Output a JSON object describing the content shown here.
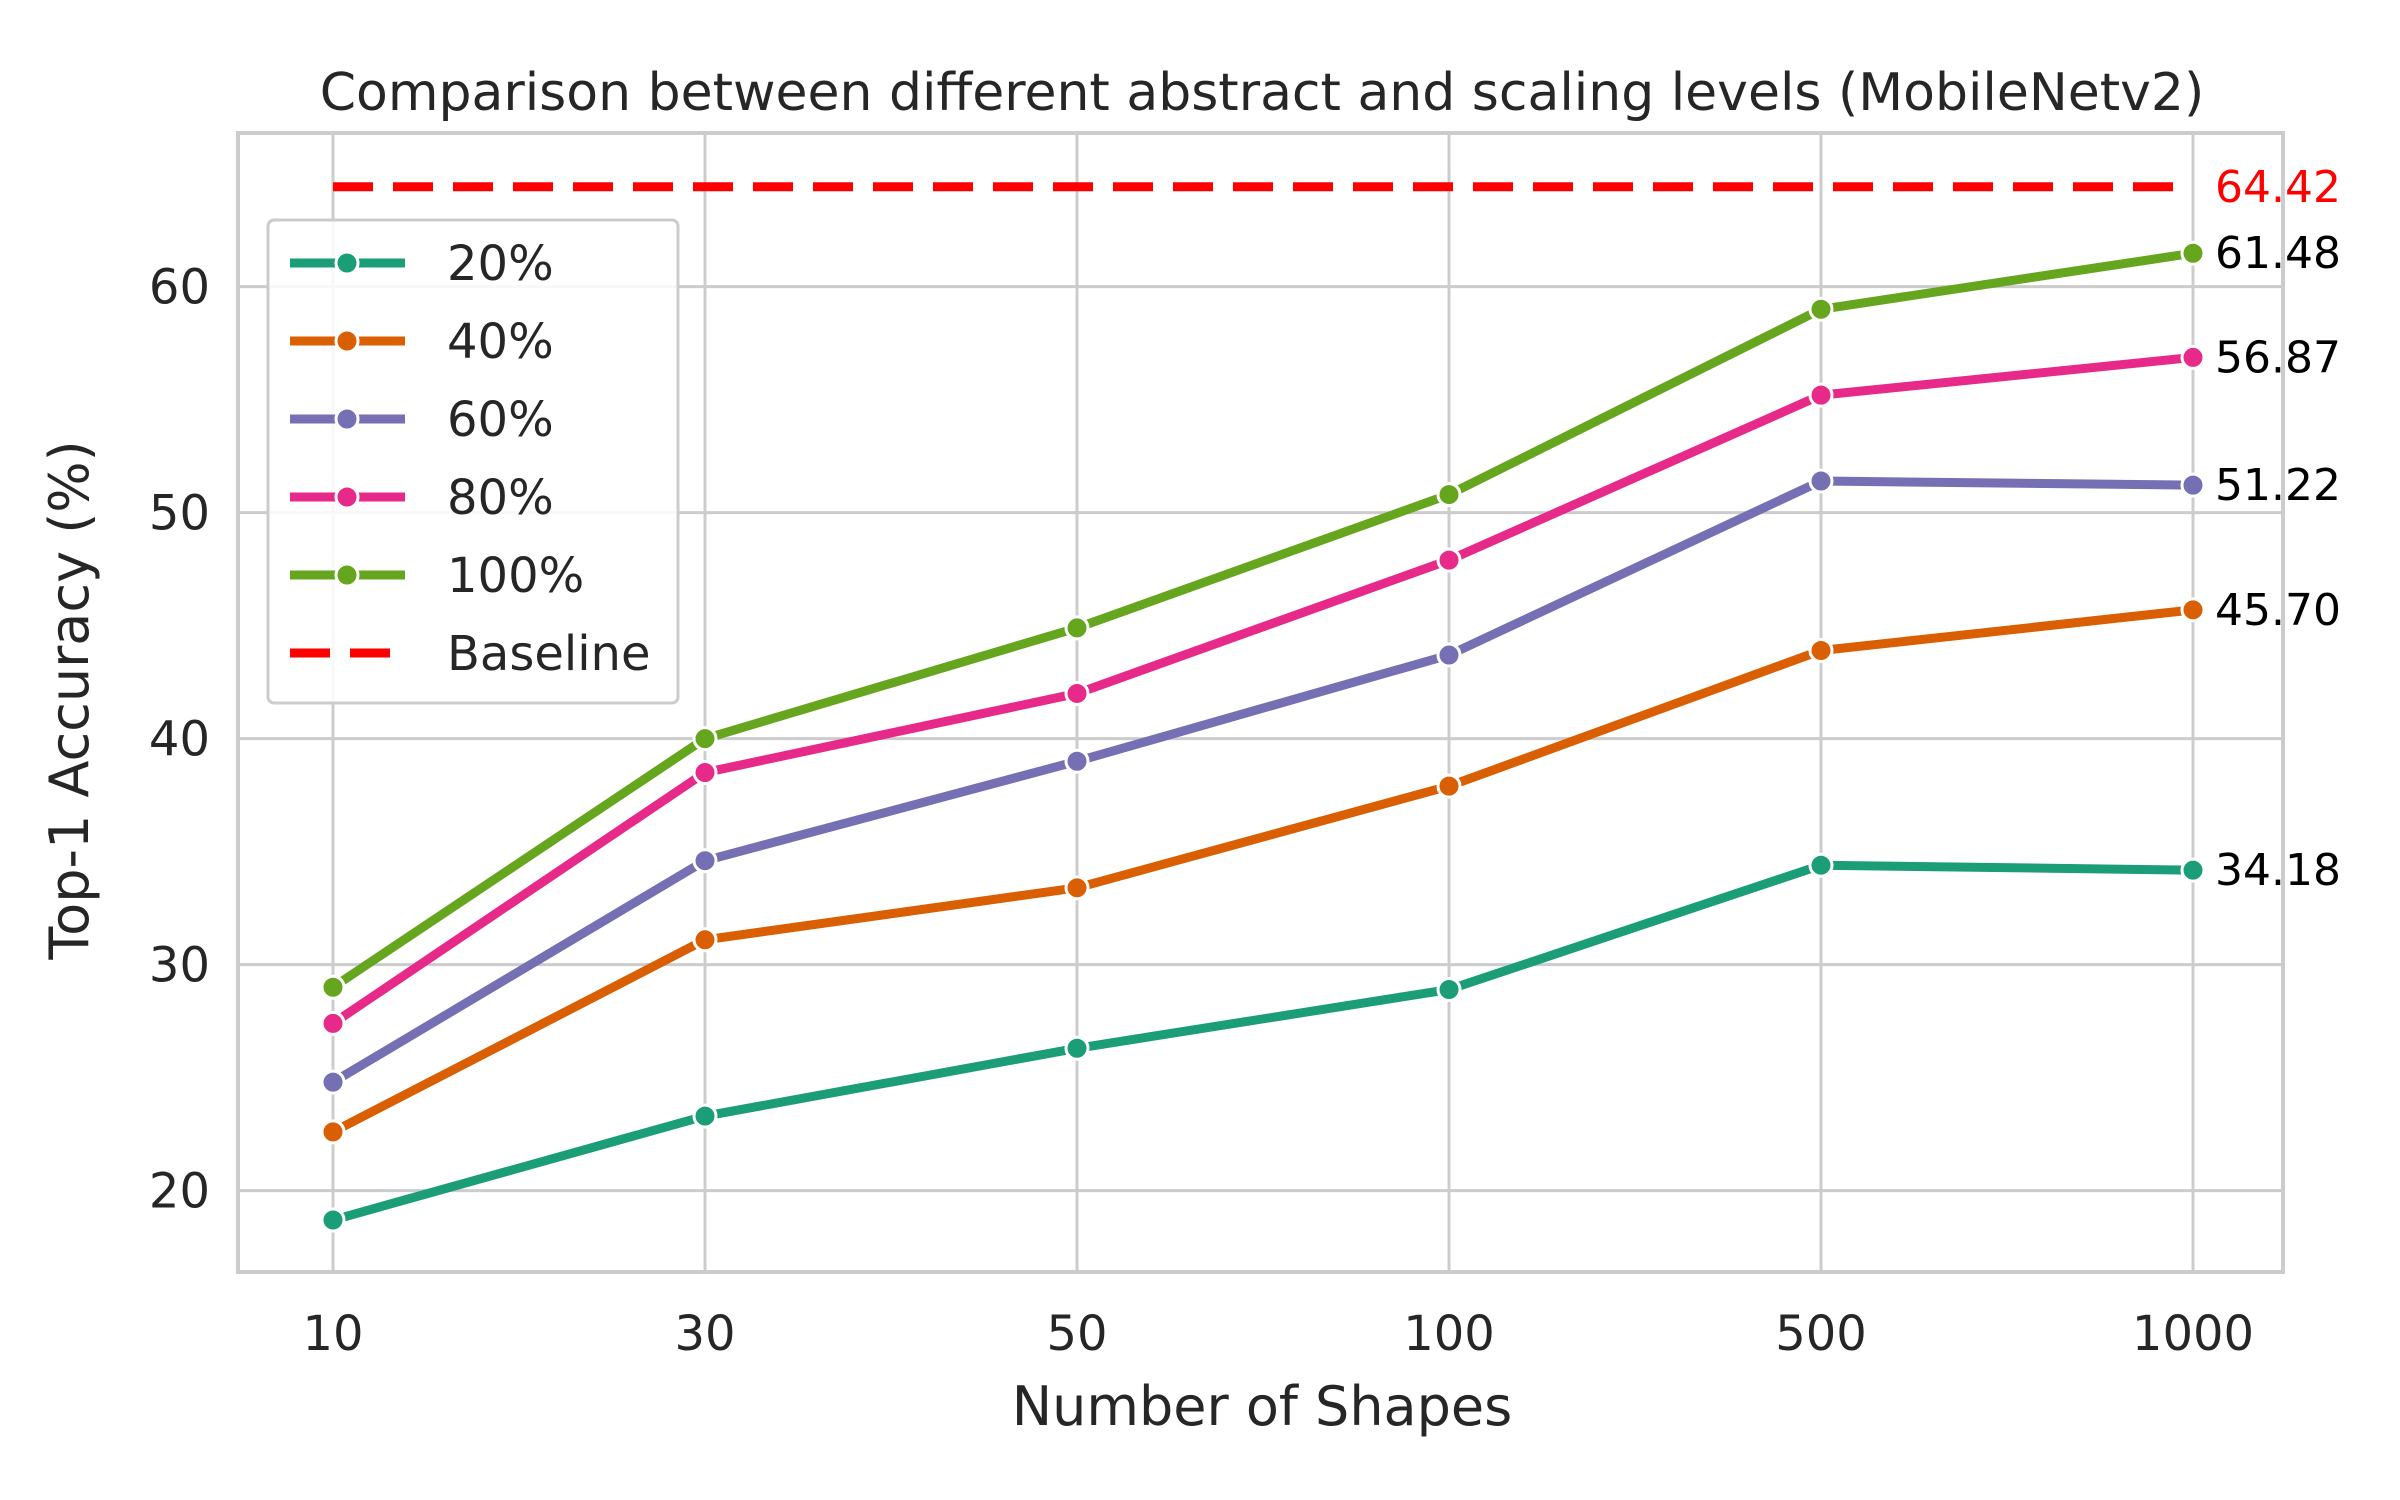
{
  "chart_data": {
    "type": "line",
    "title": "Comparison between different abstract and scaling levels (MobileNetv2)",
    "xlabel": "Number of Shapes",
    "ylabel": "Top-1 Accuracy (%)",
    "x_scale": "categorical",
    "categories": [
      "10",
      "30",
      "50",
      "100",
      "500",
      "1000"
    ],
    "ylim": [
      16.4,
      66.8
    ],
    "yticks": [
      20,
      30,
      40,
      50,
      60
    ],
    "grid": true,
    "legend_position": "upper-left",
    "series": [
      {
        "name": "20%",
        "color": "#1b9e77",
        "values": [
          18.7,
          23.3,
          26.3,
          28.9,
          34.4,
          34.18
        ],
        "end_label": "34.18"
      },
      {
        "name": "40%",
        "color": "#d95f02",
        "values": [
          22.6,
          31.1,
          33.4,
          37.9,
          43.9,
          45.7
        ],
        "end_label": "45.70"
      },
      {
        "name": "60%",
        "color": "#7570b3",
        "values": [
          24.8,
          34.6,
          39.0,
          43.7,
          51.4,
          51.22
        ],
        "end_label": "51.22"
      },
      {
        "name": "80%",
        "color": "#e7298a",
        "values": [
          27.4,
          38.5,
          42.0,
          47.9,
          55.2,
          56.87
        ],
        "end_label": "56.87"
      },
      {
        "name": "100%",
        "color": "#66a61e",
        "values": [
          29.0,
          40.0,
          44.9,
          50.8,
          59.0,
          61.48
        ],
        "end_label": "61.48"
      }
    ],
    "baseline": {
      "name": "Baseline",
      "value": 64.42,
      "label": "64.42",
      "color": "#ff0000",
      "style": "dashed"
    }
  }
}
